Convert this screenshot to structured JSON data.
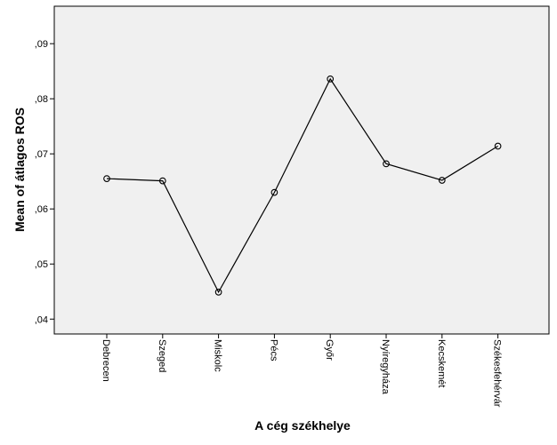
{
  "chart_data": {
    "type": "line",
    "categories": [
      "Debrecen",
      "Szeged",
      "Miskolc",
      "Pécs",
      "Győr",
      "Nyíregyháza",
      "Kecskemét",
      "Székesfehérvár"
    ],
    "series": [
      {
        "values": [
          0.0655,
          0.0651,
          0.0449,
          0.063,
          0.0836,
          0.0682,
          0.0652,
          0.0714
        ]
      }
    ],
    "xlabel": "A cég székhelye",
    "ylabel": "Mean of átlagos ROS",
    "ylim": [
      0.0373,
      0.0968
    ],
    "yticks": [
      0.04,
      0.05,
      0.06,
      0.07,
      0.08,
      0.09
    ],
    "ytick_labels": [
      ",04",
      ",05",
      ",06",
      ",07",
      ",08",
      ",09"
    ],
    "grid": false,
    "markers": "open-circle",
    "colors": {
      "plot_background": "#f0f0f0",
      "line": "#000000"
    }
  }
}
